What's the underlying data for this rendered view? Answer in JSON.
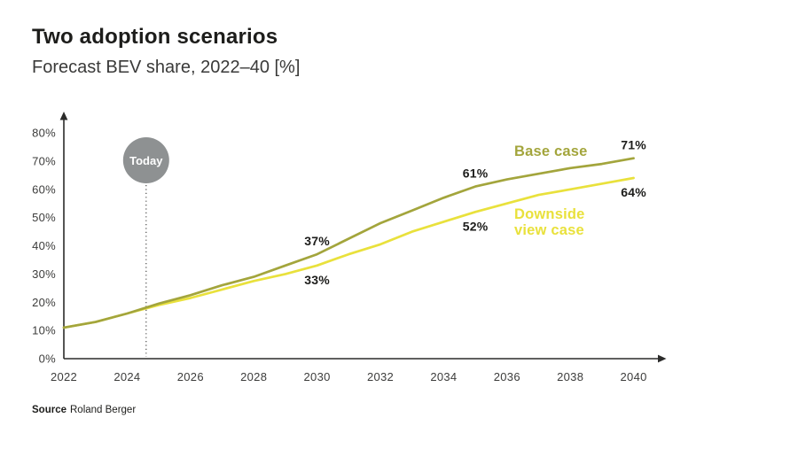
{
  "source": {
    "label": "Source",
    "text": "Roland Berger"
  },
  "colors": {
    "base_case": "#a3a53c",
    "downside_case": "#e9e13c",
    "today_badge": "#8e9192",
    "axis": "#2b2b2a",
    "text_dark": "#1d1d1b"
  },
  "chart_data": {
    "type": "line",
    "title": "Two adoption scenarios",
    "subtitle": "Forecast BEV share, 2022–40 [%]",
    "xlabel": "",
    "ylabel": "",
    "grid": false,
    "legend_position": "inline-right",
    "xlim": [
      2022,
      2040
    ],
    "ylim": [
      0,
      86
    ],
    "x": [
      2022,
      2023,
      2024,
      2025,
      2026,
      2027,
      2028,
      2029,
      2030,
      2031,
      2032,
      2033,
      2034,
      2035,
      2036,
      2037,
      2038,
      2039,
      2040
    ],
    "xticks": [
      2022,
      2024,
      2026,
      2028,
      2030,
      2032,
      2034,
      2036,
      2038,
      2040
    ],
    "yticks": [
      0,
      10,
      20,
      30,
      40,
      50,
      60,
      70,
      80
    ],
    "ytick_suffix": "%",
    "series": [
      {
        "name": "Base case",
        "name_lines": [
          "Base case"
        ],
        "color": "#a3a53c",
        "name_pos": {
          "year": 2036.23,
          "pct": 71.8
        },
        "values": [
          11,
          13,
          16,
          19.5,
          22.5,
          26,
          29,
          33,
          37,
          42.5,
          48,
          52.5,
          57,
          61,
          63.5,
          65.5,
          67.5,
          69,
          71
        ]
      },
      {
        "name": "Downside view case",
        "name_lines": [
          "Downside",
          "view case"
        ],
        "color": "#e9e13c",
        "name_pos": {
          "year": 2036.23,
          "pct": 49.6
        },
        "values": [
          11,
          13,
          16,
          19,
          21.5,
          24.5,
          27.5,
          30,
          33,
          37,
          40.5,
          45,
          48.5,
          52,
          55,
          58,
          60,
          62,
          64
        ]
      }
    ],
    "point_labels": [
      {
        "text": "37%",
        "series": 0,
        "year": 2030,
        "value": 37,
        "position": "above"
      },
      {
        "text": "33%",
        "series": 1,
        "year": 2030,
        "value": 33,
        "position": "below"
      },
      {
        "text": "61%",
        "series": 0,
        "year": 2035,
        "value": 61,
        "position": "above"
      },
      {
        "text": "52%",
        "series": 1,
        "year": 2035,
        "value": 52,
        "position": "below"
      },
      {
        "text": "71%",
        "series": 0,
        "year": 2040,
        "value": 71,
        "position": "above"
      },
      {
        "text": "64%",
        "series": 1,
        "year": 2040,
        "value": 64,
        "position": "below"
      }
    ],
    "annotation": {
      "label": "Today",
      "year": 2024.6,
      "circle_color": "#8e9192",
      "text_color": "#ffffff"
    }
  }
}
